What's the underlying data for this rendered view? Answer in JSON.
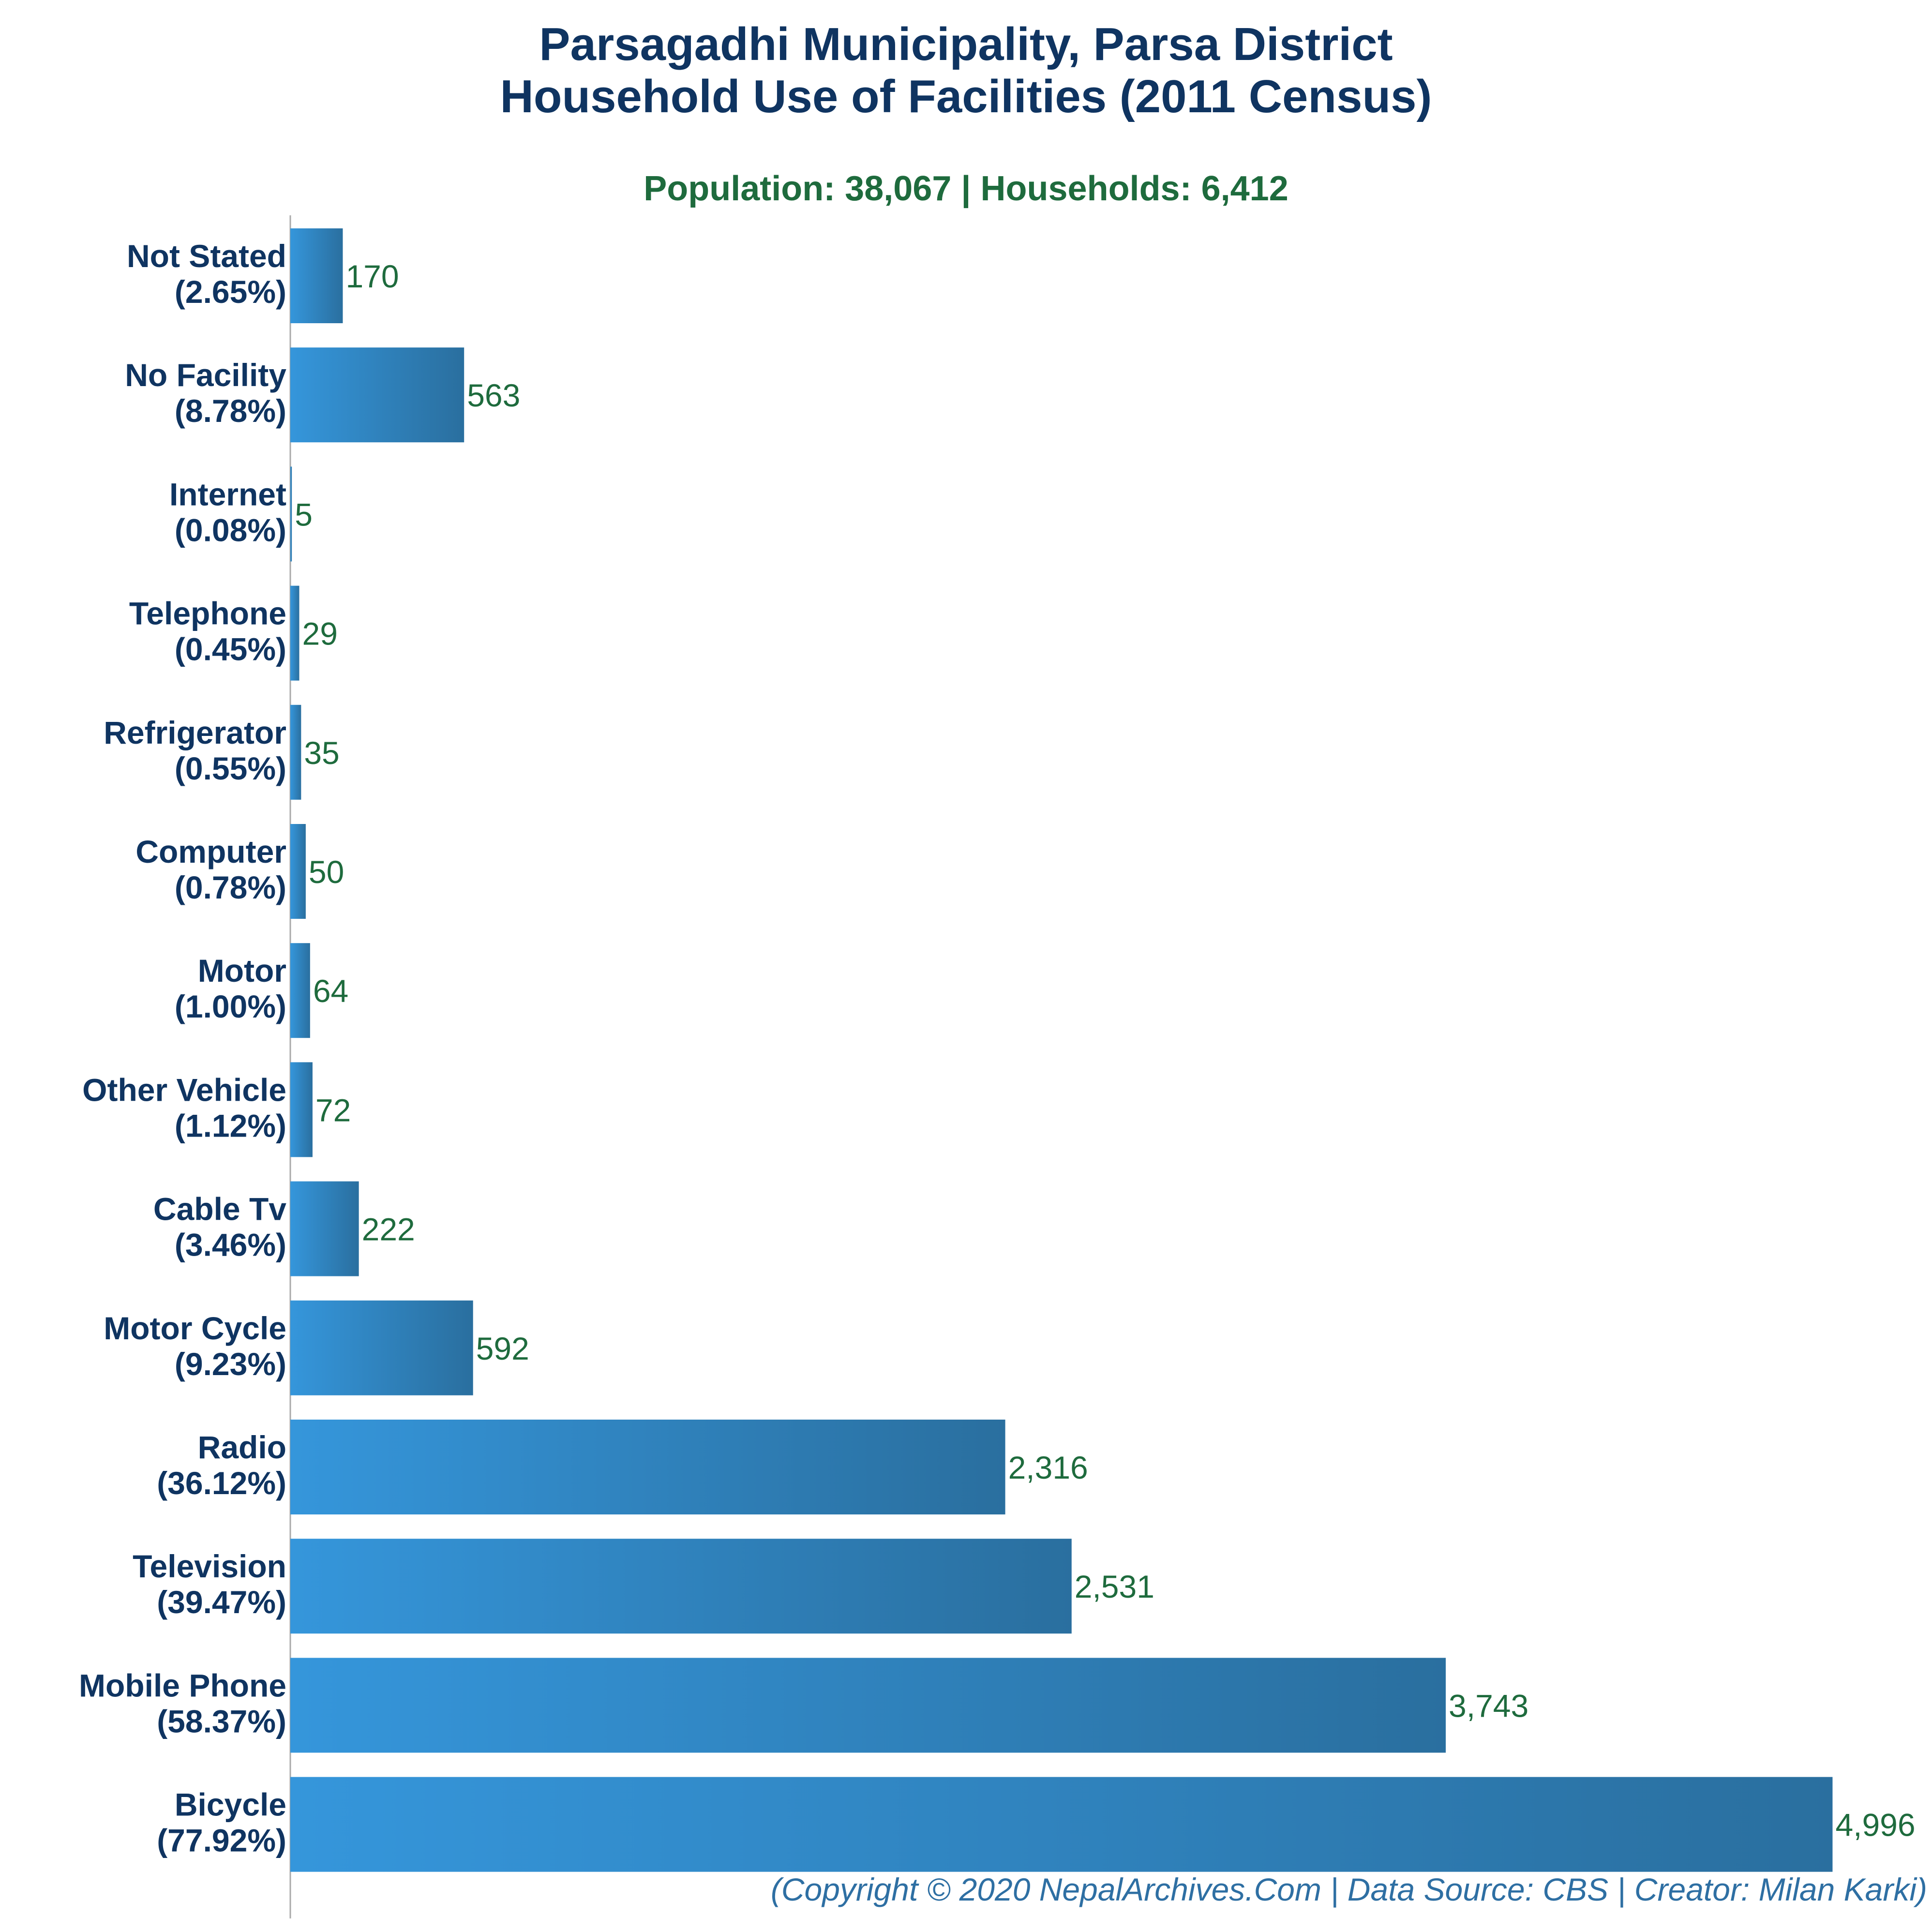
{
  "colors": {
    "title": "#0f3461",
    "subtitle": "#1e6b3d",
    "bar_light": "#3596db",
    "bar_dark": "#2a6f9f",
    "value_label": "#1e6b3d",
    "caption": "#2e6fa3",
    "axis": "#aaaaaa"
  },
  "chart_data": {
    "type": "bar",
    "orientation": "horizontal",
    "title": "Parsagadhi Municipality, Parsa District",
    "title_line2": "Household Use of Facilities (2011 Census)",
    "subtitle": "Population: 38,067 | Households: 6,412",
    "caption": "(Copyright © 2020 NepalArchives.Com | Data Source: CBS | Creator: Milan Karki)",
    "xlim": [
      0,
      5000
    ],
    "grid": false,
    "categories": [
      {
        "name": "Not Stated",
        "pct": "(2.65%)",
        "value": 170,
        "value_label": "170"
      },
      {
        "name": "No Facility",
        "pct": "(8.78%)",
        "value": 563,
        "value_label": "563"
      },
      {
        "name": "Internet",
        "pct": "(0.08%)",
        "value": 5,
        "value_label": "5"
      },
      {
        "name": "Telephone",
        "pct": "(0.45%)",
        "value": 29,
        "value_label": "29"
      },
      {
        "name": "Refrigerator",
        "pct": "(0.55%)",
        "value": 35,
        "value_label": "35"
      },
      {
        "name": "Computer",
        "pct": "(0.78%)",
        "value": 50,
        "value_label": "50"
      },
      {
        "name": "Motor",
        "pct": "(1.00%)",
        "value": 64,
        "value_label": "64"
      },
      {
        "name": "Other Vehicle",
        "pct": "(1.12%)",
        "value": 72,
        "value_label": "72"
      },
      {
        "name": "Cable Tv",
        "pct": "(3.46%)",
        "value": 222,
        "value_label": "222"
      },
      {
        "name": "Motor Cycle",
        "pct": "(9.23%)",
        "value": 592,
        "value_label": "592"
      },
      {
        "name": "Radio",
        "pct": "(36.12%)",
        "value": 2316,
        "value_label": "2,316"
      },
      {
        "name": "Television",
        "pct": "(39.47%)",
        "value": 2531,
        "value_label": "2,531"
      },
      {
        "name": "Mobile Phone",
        "pct": "(58.37%)",
        "value": 3743,
        "value_label": "3,743"
      },
      {
        "name": "Bicycle",
        "pct": "(77.92%)",
        "value": 4996,
        "value_label": "4,996"
      }
    ]
  }
}
